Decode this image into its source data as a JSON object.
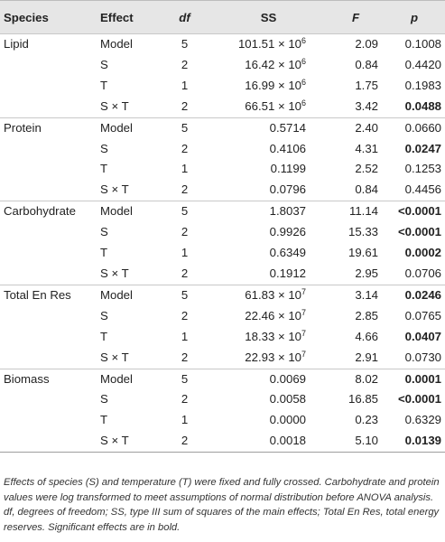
{
  "headers": {
    "species": "Species",
    "effect": "Effect",
    "df": "df",
    "ss": "SS",
    "f": "F",
    "p": "p"
  },
  "groups": [
    {
      "species": "Lipid",
      "rows": [
        {
          "effect": "Model",
          "df": "5",
          "ss_mantissa": "101.51 × 10",
          "ss_exp": "6",
          "f": "2.09",
          "p": "0.1008",
          "p_bold": false
        },
        {
          "effect": "S",
          "df": "2",
          "ss_mantissa": "16.42 × 10",
          "ss_exp": "6",
          "f": "0.84",
          "p": "0.4420",
          "p_bold": false
        },
        {
          "effect": "T",
          "df": "1",
          "ss_mantissa": "16.99 × 10",
          "ss_exp": "6",
          "f": "1.75",
          "p": "0.1983",
          "p_bold": false
        },
        {
          "effect": "S × T",
          "df": "2",
          "ss_mantissa": "66.51 × 10",
          "ss_exp": "6",
          "f": "3.42",
          "p": "0.0488",
          "p_bold": true
        }
      ]
    },
    {
      "species": "Protein",
      "rows": [
        {
          "effect": "Model",
          "df": "5",
          "ss_mantissa": "0.5714",
          "ss_exp": "",
          "f": "2.40",
          "p": "0.0660",
          "p_bold": false
        },
        {
          "effect": "S",
          "df": "2",
          "ss_mantissa": "0.4106",
          "ss_exp": "",
          "f": "4.31",
          "p": "0.0247",
          "p_bold": true
        },
        {
          "effect": "T",
          "df": "1",
          "ss_mantissa": "0.1199",
          "ss_exp": "",
          "f": "2.52",
          "p": "0.1253",
          "p_bold": false
        },
        {
          "effect": "S × T",
          "df": "2",
          "ss_mantissa": "0.0796",
          "ss_exp": "",
          "f": "0.84",
          "p": "0.4456",
          "p_bold": false
        }
      ]
    },
    {
      "species": "Carbohydrate",
      "rows": [
        {
          "effect": "Model",
          "df": "5",
          "ss_mantissa": "1.8037",
          "ss_exp": "",
          "f": "11.14",
          "p": "<0.0001",
          "p_bold": true
        },
        {
          "effect": "S",
          "df": "2",
          "ss_mantissa": "0.9926",
          "ss_exp": "",
          "f": "15.33",
          "p": "<0.0001",
          "p_bold": true
        },
        {
          "effect": "T",
          "df": "1",
          "ss_mantissa": "0.6349",
          "ss_exp": "",
          "f": "19.61",
          "p": "0.0002",
          "p_bold": true
        },
        {
          "effect": "S × T",
          "df": "2",
          "ss_mantissa": "0.1912",
          "ss_exp": "",
          "f": "2.95",
          "p": "0.0706",
          "p_bold": false
        }
      ]
    },
    {
      "species": "Total En Res",
      "rows": [
        {
          "effect": "Model",
          "df": "5",
          "ss_mantissa": "61.83 × 10",
          "ss_exp": "7",
          "f": "3.14",
          "p": "0.0246",
          "p_bold": true
        },
        {
          "effect": "S",
          "df": "2",
          "ss_mantissa": "22.46 × 10",
          "ss_exp": "7",
          "f": "2.85",
          "p": "0.0765",
          "p_bold": false
        },
        {
          "effect": "T",
          "df": "1",
          "ss_mantissa": "18.33 × 10",
          "ss_exp": "7",
          "f": "4.66",
          "p": "0.0407",
          "p_bold": true
        },
        {
          "effect": "S × T",
          "df": "2",
          "ss_mantissa": "22.93 × 10",
          "ss_exp": "7",
          "f": "2.91",
          "p": "0.0730",
          "p_bold": false
        }
      ]
    },
    {
      "species": "Biomass",
      "rows": [
        {
          "effect": "Model",
          "df": "5",
          "ss_mantissa": "0.0069",
          "ss_exp": "",
          "f": "8.02",
          "p": "0.0001",
          "p_bold": true
        },
        {
          "effect": "S",
          "df": "2",
          "ss_mantissa": "0.0058",
          "ss_exp": "",
          "f": "16.85",
          "p": "<0.0001",
          "p_bold": true
        },
        {
          "effect": "T",
          "df": "1",
          "ss_mantissa": "0.0000",
          "ss_exp": "",
          "f": "0.23",
          "p": "0.6329",
          "p_bold": false
        },
        {
          "effect": "S × T",
          "df": "2",
          "ss_mantissa": "0.0018",
          "ss_exp": "",
          "f": "5.10",
          "p": "0.0139",
          "p_bold": true
        }
      ]
    }
  ],
  "caption": "Effects of species (S) and temperature (T) were fixed and fully crossed. Carbohydrate and protein values were log transformed to meet assumptions of normal distribution before ANOVA analysis. df, degrees of freedom; SS, type III sum of squares of the main effects; Total En Res, total energy reserves. Significant effects are in bold."
}
